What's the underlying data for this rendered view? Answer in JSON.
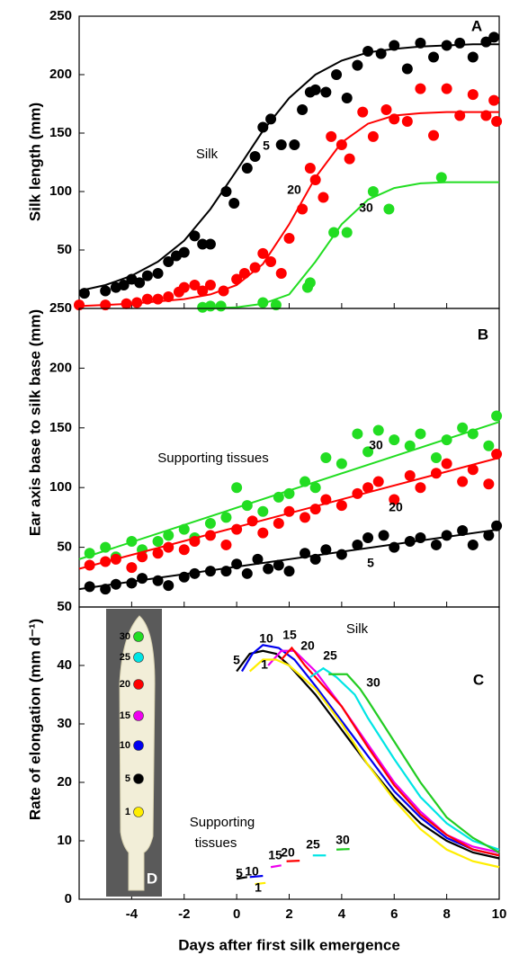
{
  "chart_data": [
    {
      "type": "scatter",
      "panel": "A",
      "ylabel": "Silk length (mm)",
      "xlim": [
        -6,
        10
      ],
      "ylim": [
        0,
        250
      ],
      "yticks": [
        50,
        100,
        150,
        200,
        250
      ],
      "annotations": [
        "Silk"
      ],
      "series": [
        {
          "name": "5",
          "color": "#000000",
          "x": [
            -5.8,
            -5.0,
            -4.6,
            -4.3,
            -4,
            -3.7,
            -3.4,
            -3,
            -2.6,
            -2.3,
            -2,
            -1.6,
            -1.3,
            -1,
            -0.4,
            -0.1,
            0.4,
            0.7,
            1,
            1.3,
            1.7,
            2.2,
            2.5,
            2.8,
            3,
            3.4,
            3.8,
            4.2,
            4.6,
            5,
            5.5,
            6,
            6.5,
            7,
            7.5,
            8,
            8.5,
            9,
            9.5,
            9.8
          ],
          "values": [
            13,
            15,
            18,
            20,
            25,
            22,
            28,
            30,
            40,
            45,
            48,
            62,
            55,
            55,
            100,
            90,
            120,
            130,
            155,
            162,
            140,
            140,
            170,
            185,
            187,
            185,
            200,
            180,
            208,
            220,
            218,
            225,
            205,
            227,
            215,
            225,
            227,
            215,
            228,
            232
          ],
          "fit": {
            "x": [
              -6,
              -5,
              -4,
              -3,
              -2,
              -1,
              0,
              1,
              2,
              3,
              4,
              5,
              6,
              7,
              8,
              9,
              10
            ],
            "values": [
              15,
              20,
              28,
              40,
              58,
              85,
              118,
              152,
              180,
              200,
              212,
              219,
              222,
              224,
              225,
              226,
              226
            ]
          }
        },
        {
          "name": "20",
          "color": "#ff0000",
          "x": [
            -6,
            -5,
            -4.2,
            -3.8,
            -3.4,
            -3,
            -2.6,
            -2.2,
            -2,
            -1.6,
            -1.3,
            -1,
            -0.5,
            0,
            0.3,
            0.7,
            1,
            1.3,
            1.7,
            2,
            2.5,
            2.8,
            3,
            3.3,
            3.6,
            4,
            4.3,
            4.8,
            5.2,
            5.7,
            6,
            6.5,
            7,
            7.5,
            8,
            8.5,
            9,
            9.5,
            9.8,
            9.9
          ],
          "values": [
            3,
            3,
            4,
            5,
            8,
            8,
            10,
            14,
            18,
            20,
            15,
            20,
            15,
            25,
            30,
            35,
            47,
            40,
            30,
            60,
            85,
            120,
            110,
            95,
            147,
            140,
            128,
            168,
            147,
            170,
            162,
            160,
            188,
            148,
            188,
            165,
            183,
            165,
            178,
            160
          ],
          "fit": {
            "x": [
              -6,
              -4,
              -2,
              -1,
              0,
              1,
              2,
              3,
              4,
              5,
              6,
              7,
              8,
              10
            ],
            "values": [
              2,
              4,
              8,
              12,
              20,
              38,
              72,
              112,
              142,
              158,
              165,
              167,
              168,
              168
            ]
          }
        },
        {
          "name": "30",
          "color": "#22dd22",
          "x": [
            -1.3,
            -1,
            -0.6,
            1,
            1.5,
            2.7,
            2.8,
            3.7,
            4.2,
            5.2,
            5.8,
            7.8
          ],
          "values": [
            1,
            2,
            2,
            5,
            3,
            18,
            22,
            65,
            65,
            100,
            85,
            112
          ],
          "fit": {
            "x": [
              -1,
              0,
              1,
              2,
              3,
              4,
              5,
              6,
              7,
              8,
              10
            ],
            "values": [
              0,
              1,
              4,
              12,
              40,
              72,
              93,
              103,
              107,
              108,
              108
            ]
          }
        }
      ]
    },
    {
      "type": "scatter",
      "panel": "B",
      "ylabel": "Ear axis base to silk base (mm)",
      "xlim": [
        -6,
        10
      ],
      "ylim": [
        0,
        250
      ],
      "yticks": [
        50,
        100,
        150,
        200,
        250
      ],
      "annotations": [
        "Supporting tissues"
      ],
      "series": [
        {
          "name": "30",
          "color": "#22dd22",
          "x": [
            -5.6,
            -5,
            -4.6,
            -4,
            -3.6,
            -3,
            -2.6,
            -2,
            -1.6,
            -1,
            -0.4,
            0,
            0.4,
            1,
            1.6,
            2,
            2.6,
            3,
            3.4,
            4,
            4.6,
            5,
            5.4,
            6,
            6.6,
            7,
            7.6,
            8,
            8.6,
            9,
            9.6,
            9.9
          ],
          "values": [
            45,
            50,
            42,
            55,
            48,
            55,
            60,
            65,
            58,
            70,
            75,
            100,
            85,
            80,
            92,
            95,
            105,
            100,
            125,
            120,
            145,
            130,
            148,
            140,
            135,
            145,
            125,
            140,
            150,
            145,
            135,
            160
          ],
          "fit": {
            "x": [
              -6,
              10
            ],
            "values": [
              40,
              155
            ]
          }
        },
        {
          "name": "20",
          "color": "#ff0000",
          "x": [
            -5.6,
            -5,
            -4.6,
            -4,
            -3.6,
            -3,
            -2.6,
            -2,
            -1.6,
            -1,
            -0.4,
            0,
            0.6,
            1,
            1.6,
            2,
            2.6,
            3,
            3.4,
            4,
            4.6,
            5,
            5.4,
            6,
            6.6,
            7,
            7.6,
            8,
            8.6,
            9,
            9.6,
            9.9
          ],
          "values": [
            35,
            38,
            40,
            33,
            42,
            45,
            50,
            48,
            55,
            60,
            52,
            65,
            72,
            62,
            70,
            80,
            75,
            82,
            90,
            85,
            95,
            100,
            105,
            90,
            110,
            100,
            112,
            120,
            105,
            115,
            103,
            128
          ],
          "fit": {
            "x": [
              -6,
              10
            ],
            "values": [
              32,
              125
            ]
          }
        },
        {
          "name": "5",
          "color": "#000000",
          "x": [
            -5.6,
            -5,
            -4.6,
            -4,
            -3.6,
            -3,
            -2.6,
            -2,
            -1.6,
            -1,
            -0.4,
            0,
            0.4,
            0.8,
            1.2,
            1.6,
            2,
            2.6,
            3,
            3.4,
            4,
            4.6,
            5,
            5.6,
            6,
            6.6,
            7,
            7.6,
            8,
            8.6,
            9,
            9.6,
            9.9
          ],
          "values": [
            17,
            15,
            19,
            20,
            24,
            22,
            18,
            25,
            28,
            30,
            30,
            36,
            28,
            40,
            32,
            35,
            30,
            45,
            40,
            48,
            44,
            52,
            58,
            60,
            50,
            55,
            58,
            52,
            60,
            64,
            52,
            60,
            68
          ],
          "fit": {
            "x": [
              -6,
              10
            ],
            "values": [
              15,
              65
            ]
          }
        }
      ]
    },
    {
      "type": "line",
      "panel": "C",
      "ylabel": "Rate of elongation (mm d⁻¹)",
      "xlabel": "Days after first silk emergence",
      "xlim": [
        -6,
        10
      ],
      "xticks": [
        -4,
        -2,
        0,
        2,
        4,
        6,
        8,
        10
      ],
      "ylim": [
        0,
        50
      ],
      "yticks": [
        0,
        10,
        20,
        30,
        40,
        50
      ],
      "annotations": [
        "Silk",
        "Supporting",
        "tissues"
      ],
      "series": [
        {
          "name": "5",
          "color": "#000000",
          "x": [
            0,
            0.5,
            1,
            1.5,
            2,
            3,
            4,
            5,
            6,
            7,
            8,
            9,
            10
          ],
          "values": [
            39,
            42,
            42.5,
            42,
            40,
            35,
            29,
            23,
            17.5,
            13,
            10,
            8,
            7
          ]
        },
        {
          "name": "10",
          "color": "#0000ee",
          "x": [
            0.2,
            0.6,
            1,
            1.6,
            2.2,
            3,
            4,
            5,
            6,
            7,
            8,
            9,
            10
          ],
          "values": [
            39,
            42,
            43.5,
            43,
            41,
            36.5,
            30.5,
            24.5,
            18.5,
            14,
            10.5,
            8.5,
            7.5
          ]
        },
        {
          "name": "15",
          "color": "#ee00ee",
          "x": [
            1.2,
            1.7,
            2.2,
            3,
            4,
            5,
            6,
            7,
            8,
            9,
            10
          ],
          "values": [
            40,
            42.5,
            42.5,
            39,
            33,
            26.5,
            20,
            15,
            11,
            9,
            8
          ]
        },
        {
          "name": "20",
          "color": "#ff0000",
          "x": [
            1.7,
            2.1,
            2.6,
            3,
            4,
            5,
            6,
            7,
            8,
            9,
            10
          ],
          "values": [
            41,
            43,
            40,
            38,
            33,
            26,
            19.5,
            14.5,
            11,
            8.5,
            7.5
          ]
        },
        {
          "name": "25",
          "color": "#00e5e5",
          "x": [
            2.8,
            3.3,
            3.8,
            4.5,
            5,
            6,
            7,
            8,
            9,
            10
          ],
          "values": [
            38,
            39.5,
            38,
            35,
            31,
            24,
            17.5,
            13,
            10,
            8.5
          ]
        },
        {
          "name": "30",
          "color": "#22cc22",
          "x": [
            3.5,
            4.2,
            4.7,
            5,
            6,
            7,
            8,
            9,
            10
          ],
          "values": [
            38.5,
            38.5,
            36,
            34,
            27,
            20,
            14,
            10.5,
            8
          ]
        },
        {
          "name": "1",
          "color": "#ffee00",
          "x": [
            0.5,
            1,
            1.5,
            2,
            3,
            4,
            5,
            6,
            7,
            8,
            9,
            10
          ],
          "values": [
            39,
            41,
            41,
            40,
            36,
            30,
            23,
            17,
            12,
            8.5,
            6.5,
            5.5
          ]
        },
        {
          "name": "5",
          "color": "#000000",
          "x": [
            0,
            0.4
          ],
          "values": [
            3.5,
            3.8
          ]
        },
        {
          "name": "10",
          "color": "#0000ee",
          "x": [
            0.5,
            1
          ],
          "values": [
            3.8,
            4
          ]
        },
        {
          "name": "1",
          "color": "#ffee00",
          "x": [
            0.7,
            1.1
          ],
          "values": [
            2.6,
            2.8
          ]
        },
        {
          "name": "15",
          "color": "#ee00ee",
          "x": [
            1.3,
            1.7
          ],
          "values": [
            5.5,
            5.8
          ]
        },
        {
          "name": "20",
          "color": "#ff0000",
          "x": [
            1.9,
            2.4
          ],
          "values": [
            6.5,
            6.6
          ]
        },
        {
          "name": "25",
          "color": "#00e5e5",
          "x": [
            2.9,
            3.4
          ],
          "values": [
            7.5,
            7.5
          ]
        },
        {
          "name": "30",
          "color": "#22cc22",
          "x": [
            3.8,
            4.3
          ],
          "values": [
            8.5,
            8.6
          ]
        }
      ],
      "inset": {
        "label": "D",
        "markers": [
          {
            "label": "30",
            "color": "#22dd22"
          },
          {
            "label": "25",
            "color": "#00e5e5"
          },
          {
            "label": "20",
            "color": "#ff0000"
          },
          {
            "label": "15",
            "color": "#ee00ee"
          },
          {
            "label": "10",
            "color": "#0000ee"
          },
          {
            "label": "5",
            "color": "#000000"
          },
          {
            "label": "1",
            "color": "#ffee00"
          }
        ]
      }
    }
  ]
}
